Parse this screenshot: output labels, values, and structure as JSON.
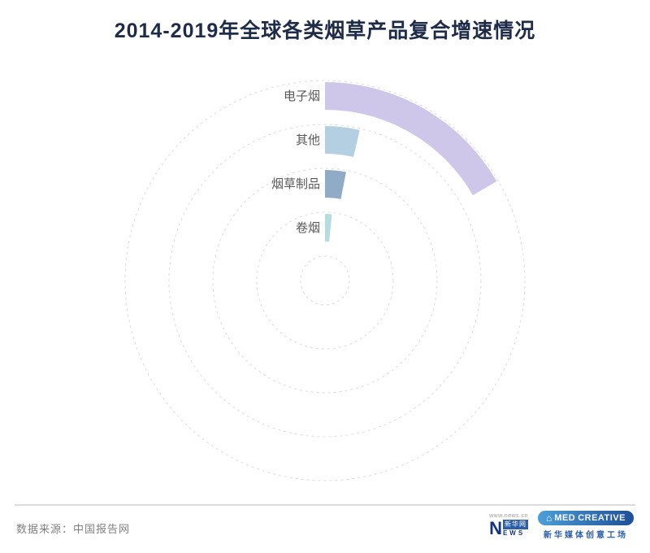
{
  "title": "2014-2019年全球各类烟草产品复合增速情况",
  "chart_data": {
    "type": "radial-bar",
    "title": "2014-2019年全球各类烟草产品复合增速情况",
    "categories": [
      "电子烟",
      "其他",
      "烟草制品",
      "卷烟"
    ],
    "series": [
      {
        "name": "复合增速",
        "sweep_deg": [
          60,
          13,
          11,
          6
        ]
      }
    ],
    "colors": [
      "#cfc7e9",
      "#b5cfe2",
      "#8fabc5",
      "#b5dde0"
    ],
    "start_deg": 0,
    "direction": "clockwise",
    "grid": {
      "style": "dashed-circles",
      "count": 5,
      "color": "#dcdcdc"
    },
    "legend": "none",
    "axis_labels": "none",
    "label_color": "#595959"
  },
  "footer": {
    "source": "数据来源：中国报告网",
    "logos": {
      "xinhua": {
        "url_text": "www.news.cn",
        "letter_n": "N",
        "box_text": "新华网",
        "letters": "EWS"
      },
      "med": {
        "med": "MED",
        "creative": "CREATIVE",
        "house_icon": "⌂",
        "caption": "新华媒体创意工场"
      }
    }
  }
}
